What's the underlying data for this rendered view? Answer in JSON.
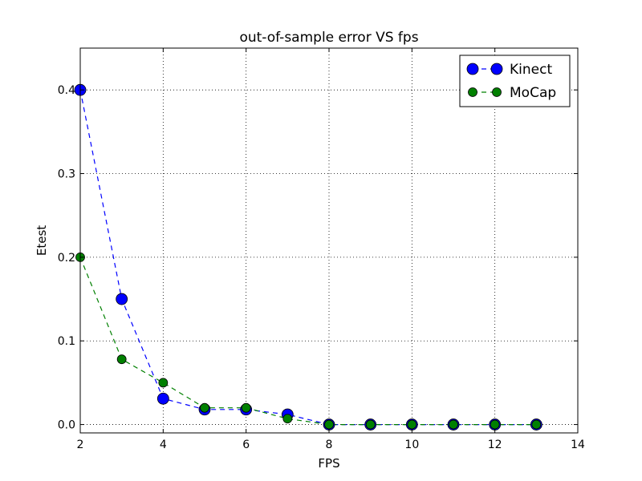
{
  "chart_data": {
    "type": "line",
    "title": "out-of-sample error VS fps",
    "xlabel": "FPS",
    "ylabel": "Etest",
    "xlim": [
      2,
      14
    ],
    "ylim": [
      -0.01,
      0.45
    ],
    "xticks": [
      2,
      4,
      6,
      8,
      10,
      12,
      14
    ],
    "yticks": [
      0.0,
      0.1,
      0.2,
      0.3,
      0.4
    ],
    "grid": true,
    "legend_position": "top-right",
    "x": [
      2,
      3,
      4,
      5,
      6,
      7,
      8,
      9,
      10,
      11,
      12,
      13
    ],
    "series": [
      {
        "name": "Kinect",
        "color": "#0000ff",
        "marker": "circle-large",
        "linestyle": "dashed",
        "values": [
          0.4,
          0.15,
          0.031,
          0.018,
          0.018,
          0.012,
          0.0,
          0.0,
          0.0,
          0.0,
          0.0,
          0.0
        ]
      },
      {
        "name": "MoCap",
        "color": "#008000",
        "marker": "circle-small",
        "linestyle": "dashed",
        "values": [
          0.2,
          0.078,
          0.05,
          0.02,
          0.02,
          0.007,
          0.0,
          0.0,
          0.0,
          0.0,
          0.0,
          0.0
        ]
      }
    ]
  }
}
